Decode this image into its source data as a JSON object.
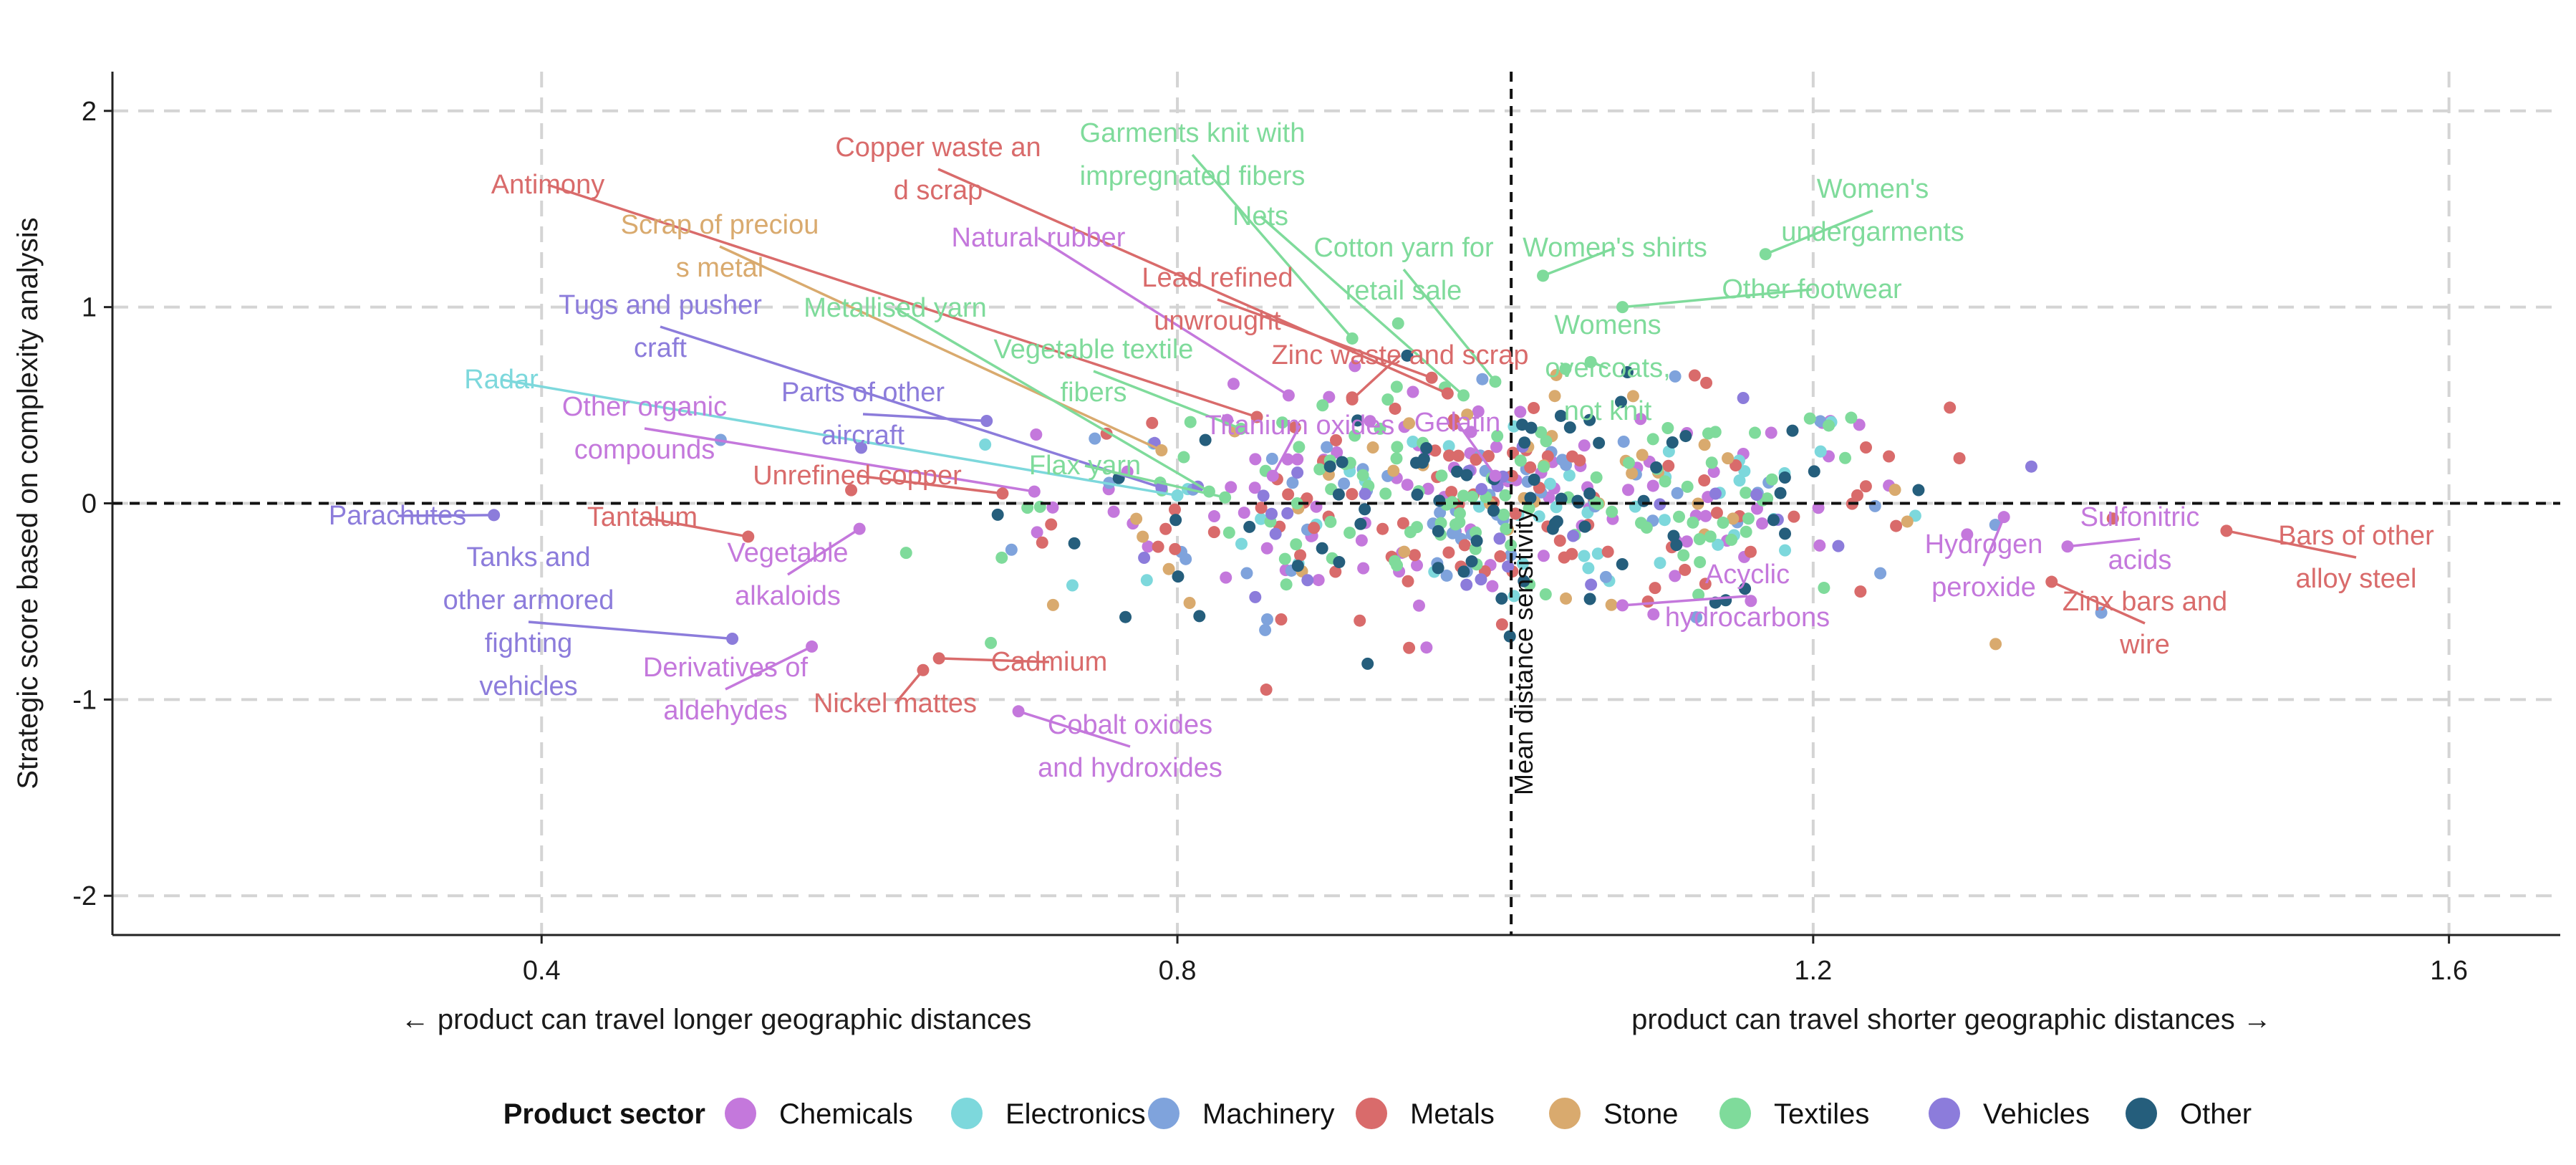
{
  "chart_data": {
    "type": "scatter",
    "xlabel_left": "← product can travel longer geographic distances",
    "xlabel_right": "product can travel shorter geographic distances →",
    "ylabel": "Strategic score based on complexity analysis",
    "xlim": [
      0.13,
      1.67
    ],
    "ylim": [
      -2.2,
      2.2
    ],
    "x_ticks": [
      0.4,
      0.8,
      1.2,
      1.6
    ],
    "x_tick_labels": [
      "0.4",
      "0.8",
      "1.2",
      "1.6"
    ],
    "y_ticks": [
      2,
      1,
      0,
      -1,
      -2
    ],
    "y_tick_labels": [
      "2",
      "1",
      "0",
      "-1",
      "-2"
    ],
    "grid": true,
    "mean_line": {
      "x": 1.01,
      "label": "Mean distance sensitivity"
    },
    "legend": {
      "title": "Product sector",
      "position": "bottom",
      "items": [
        {
          "name": "Chemicals",
          "color": "#c478dc"
        },
        {
          "name": "Electronics",
          "color": "#7dd8dc"
        },
        {
          "name": "Machinery",
          "color": "#7fa3dc"
        },
        {
          "name": "Metals",
          "color": "#d96b6b"
        },
        {
          "name": "Stone",
          "color": "#d9aa6e"
        },
        {
          "name": "Textiles",
          "color": "#7fdb9b"
        },
        {
          "name": "Vehicles",
          "color": "#8c7cdb"
        },
        {
          "name": "Other",
          "color": "#255e7c"
        }
      ]
    },
    "labeled_points": [
      {
        "label": "Antimony",
        "sector": "Metals",
        "x": 0.85,
        "y": 0.44
      },
      {
        "label": "Copper waste and scrap",
        "sector": "Metals",
        "x": 0.97,
        "y": 0.56
      },
      {
        "label": "Garments knit with impregnated fibers",
        "sector": "Textiles",
        "x": 0.91,
        "y": 0.84
      },
      {
        "label": "Nets",
        "sector": "Textiles",
        "x": 0.98,
        "y": 0.55
      },
      {
        "label": "Cotton yarn for retail sale",
        "sector": "Textiles",
        "x": 1.0,
        "y": 0.62
      },
      {
        "label": "Women's shirts",
        "sector": "Textiles",
        "x": 1.03,
        "y": 1.16
      },
      {
        "label": "Women's undergarments",
        "sector": "Textiles",
        "x": 1.17,
        "y": 1.27
      },
      {
        "label": "Other footwear",
        "sector": "Textiles",
        "x": 1.08,
        "y": 1.0
      },
      {
        "label": "Scrap of precious metal",
        "sector": "Stone",
        "x": 0.79,
        "y": 0.27
      },
      {
        "label": "Natural rubber",
        "sector": "Chemicals",
        "x": 0.87,
        "y": 0.55
      },
      {
        "label": "Lead refined unwrought",
        "sector": "Metals",
        "x": 0.96,
        "y": 0.64
      },
      {
        "label": "Zinc waste and scrap",
        "sector": "Metals",
        "x": 0.91,
        "y": 0.53
      },
      {
        "label": "Womens overcoats, not knit",
        "sector": "Textiles",
        "x": 1.06,
        "y": 0.72
      },
      {
        "label": "Tugs and pusher craft",
        "sector": "Vehicles",
        "x": 0.79,
        "y": 0.08
      },
      {
        "label": "Metallised yarn",
        "sector": "Textiles",
        "x": 0.82,
        "y": 0.06
      },
      {
        "label": "Vegetable textile fibers",
        "sector": "Textiles",
        "x": 0.84,
        "y": 0.38
      },
      {
        "label": "Radar",
        "sector": "Electronics",
        "x": 0.8,
        "y": 0.04
      },
      {
        "label": "Parts of other aircraft",
        "sector": "Vehicles",
        "x": 0.68,
        "y": 0.42
      },
      {
        "label": "Titanium oxides",
        "sector": "Chemicals",
        "x": 0.86,
        "y": 0.14
      },
      {
        "label": "Gelatin",
        "sector": "Chemicals",
        "x": 1.0,
        "y": 0.14
      },
      {
        "label": "Other organic compounds",
        "sector": "Chemicals",
        "x": 0.71,
        "y": 0.06
      },
      {
        "label": "Flax yarn",
        "sector": "Textiles",
        "x": 0.83,
        "y": 0.03
      },
      {
        "label": "Unrefined copper",
        "sector": "Metals",
        "x": 0.69,
        "y": 0.05
      },
      {
        "label": "Parachutes",
        "sector": "Vehicles",
        "x": 0.37,
        "y": -0.06
      },
      {
        "label": "Tantalum",
        "sector": "Metals",
        "x": 0.53,
        "y": -0.17
      },
      {
        "label": "Tanks and other armored fighting vehicles",
        "sector": "Vehicles",
        "x": 0.52,
        "y": -0.69
      },
      {
        "label": "Vegetable alkaloids",
        "sector": "Chemicals",
        "x": 0.6,
        "y": -0.13
      },
      {
        "label": "Derivatives of aldehydes",
        "sector": "Chemicals",
        "x": 0.57,
        "y": -0.73
      },
      {
        "label": "Nickel mattes",
        "sector": "Metals",
        "x": 0.64,
        "y": -0.85
      },
      {
        "label": "Cadmium",
        "sector": "Metals",
        "x": 0.65,
        "y": -0.79
      },
      {
        "label": "Cobalt oxides and hydroxides",
        "sector": "Chemicals",
        "x": 0.7,
        "y": -1.06
      },
      {
        "label": "Acyclic hydrocarbons",
        "sector": "Chemicals",
        "x": 1.08,
        "y": -0.52
      },
      {
        "label": "Hydrogen peroxide",
        "sector": "Chemicals",
        "x": 1.32,
        "y": -0.07
      },
      {
        "label": "Sulfonitric acids",
        "sector": "Chemicals",
        "x": 1.36,
        "y": -0.22
      },
      {
        "label": "Zinx bars and wire",
        "sector": "Metals",
        "x": 1.35,
        "y": -0.4
      },
      {
        "label": "Bars of other alloy steel",
        "sector": "Metals",
        "x": 1.46,
        "y": -0.14
      }
    ],
    "cloud": {
      "description_of_distribution": "dense",
      "points_per_sector": {
        "Chemicals": 100,
        "Electronics": 45,
        "Machinery": 60,
        "Metals": 95,
        "Stone": 40,
        "Textiles": 110,
        "Vehicles": 30,
        "Other": 75
      },
      "x_center": 1.0,
      "x_spread": 0.14,
      "y_center": 0.0,
      "y_spread": 0.28,
      "note": ""
    }
  }
}
